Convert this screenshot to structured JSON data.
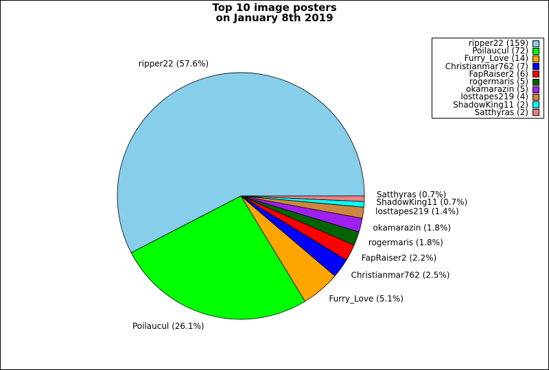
{
  "chart_data": {
    "type": "pie",
    "title_line1": "Top 10 image posters",
    "title_line2": "on January 8th 2019",
    "legend_position": "top-right",
    "slices": [
      {
        "name": "ripper22",
        "count": 159,
        "percent": 57.6,
        "slice_label": "ripper22 (57.6%)",
        "legend_label": "ripper22 (159)",
        "color": "#87ceeb"
      },
      {
        "name": "Poilaucul",
        "count": 72,
        "percent": 26.1,
        "slice_label": "Poilaucul (26.1%)",
        "legend_label": "Poilaucul (72)",
        "color": "#00ff00"
      },
      {
        "name": "Furry_Love",
        "count": 14,
        "percent": 5.1,
        "slice_label": "Furry_Love (5.1%)",
        "legend_label": "Furry_Love (14)",
        "color": "#ffa500"
      },
      {
        "name": "Christianmar762",
        "count": 7,
        "percent": 2.5,
        "slice_label": "Christianmar762 (2.5%)",
        "legend_label": "Christianmar762 (7)",
        "color": "#0000ff"
      },
      {
        "name": "FapRaiser2",
        "count": 6,
        "percent": 2.2,
        "slice_label": "FapRaiser2 (2.2%)",
        "legend_label": "FapRaiser2 (6)",
        "color": "#ff0000"
      },
      {
        "name": "rogermaris",
        "count": 5,
        "percent": 1.8,
        "slice_label": "rogermaris (1.8%)",
        "legend_label": "rogermaris (5)",
        "color": "#006400"
      },
      {
        "name": "okamarazin",
        "count": 5,
        "percent": 1.8,
        "slice_label": "okamarazin (1.8%)",
        "legend_label": "okamarazin (5)",
        "color": "#a020f0"
      },
      {
        "name": "losttapes219",
        "count": 4,
        "percent": 1.4,
        "slice_label": "losttapes219 (1.4%)",
        "legend_label": "losttapes219 (4)",
        "color": "#cd853f"
      },
      {
        "name": "ShadowKing11",
        "count": 2,
        "percent": 0.7,
        "slice_label": "ShadowKing11 (0.7%)",
        "legend_label": "ShadowKing11 (2)",
        "color": "#00ffff"
      },
      {
        "name": "Satthyras",
        "count": 2,
        "percent": 0.7,
        "slice_label": "Satthyras (0.7%)",
        "legend_label": "Satthyras (2)",
        "color": "#f08080"
      }
    ]
  }
}
